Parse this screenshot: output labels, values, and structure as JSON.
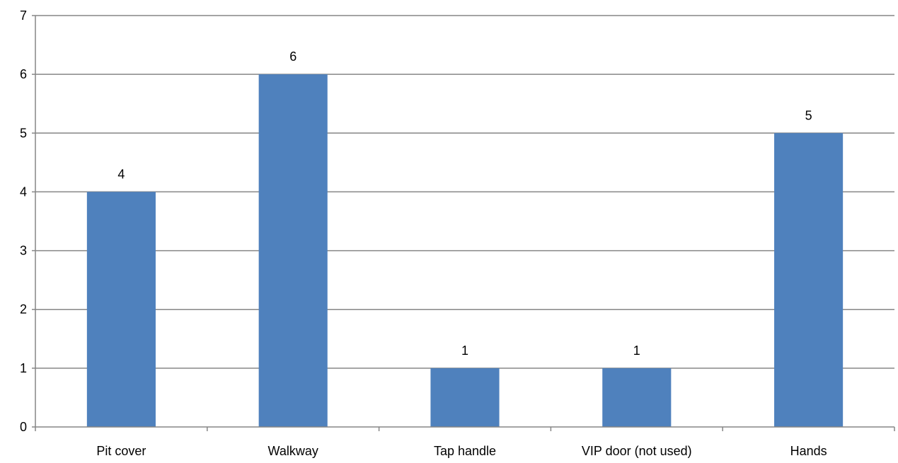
{
  "chart_data": {
    "type": "bar",
    "title": "",
    "xlabel": "",
    "ylabel": "",
    "categories": [
      "Pit cover",
      "Walkway",
      "Tap handle",
      "VIP door (not used)",
      "Hands"
    ],
    "values": [
      4,
      6,
      1,
      1,
      5
    ],
    "data_labels": [
      "4",
      "6",
      "1",
      "1",
      "5"
    ],
    "ylim": [
      0,
      7
    ],
    "yticks": [
      "0",
      "1",
      "2",
      "3",
      "4",
      "5",
      "6",
      "7"
    ],
    "grid": true,
    "legend": "none",
    "colors": {
      "bar": "#4F81BD",
      "grid": "#868686",
      "axis": "#868686"
    }
  }
}
